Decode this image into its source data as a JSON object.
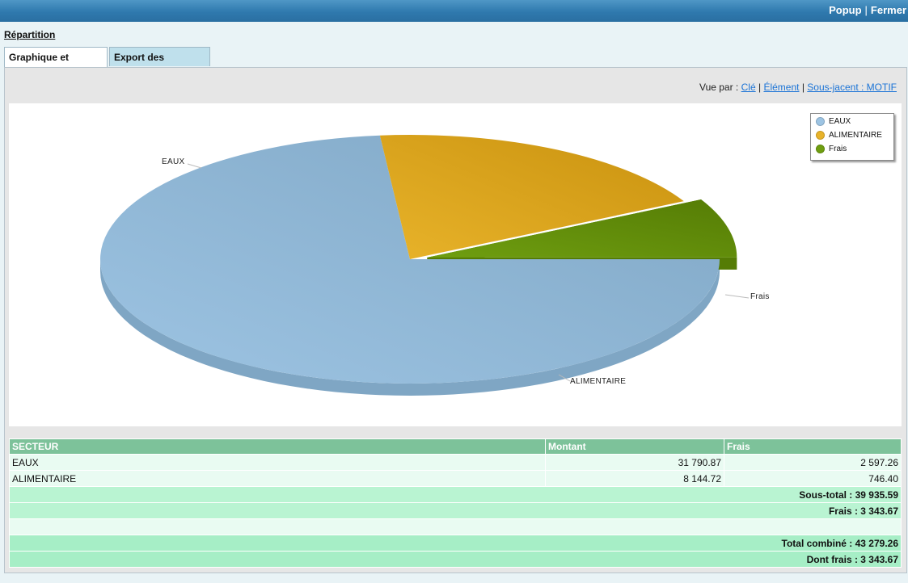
{
  "header": {
    "popup_label": "Popup",
    "separator": "|",
    "close_label": "Fermer"
  },
  "page": {
    "title": "Répartition"
  },
  "tabs": [
    {
      "label": "Graphique et tableau",
      "active": true
    },
    {
      "label": "Export des données",
      "active": false
    }
  ],
  "view_by": {
    "prefix": "Vue par :",
    "options": [
      "Clé",
      "Élément",
      "Sous-jacent : MOTIF"
    ],
    "separator": "|"
  },
  "colors": {
    "eaux": "#9dc4e3",
    "alimentaire": "#e8b32a",
    "frais": "#6f9e10",
    "header_bar": "#3581b8",
    "table_header": "#7dc29a"
  },
  "chart_data": {
    "type": "pie",
    "style": "3d",
    "legend_position": "top-right",
    "slices": [
      {
        "name": "EAUX",
        "value": 31790.87,
        "color": "#9dc4e3"
      },
      {
        "name": "ALIMENTAIRE",
        "value": 8144.72,
        "color": "#e8b32a"
      },
      {
        "name": "Frais",
        "value": 3343.67,
        "color": "#6f9e10"
      }
    ],
    "legend": [
      "EAUX",
      "ALIMENTAIRE",
      "Frais"
    ]
  },
  "table": {
    "columns": [
      "SECTEUR",
      "Montant",
      "Frais"
    ],
    "rows": [
      {
        "secteur": "EAUX",
        "montant": "31 790.87",
        "frais": "2 597.26"
      },
      {
        "secteur": "ALIMENTAIRE",
        "montant": "8 144.72",
        "frais": "746.40"
      }
    ],
    "subtotal": "Sous-total : 39 935.59",
    "fees": "Frais : 3 343.67",
    "total": "Total combiné : 43 279.26",
    "fees_included": "Dont frais : 3 343.67"
  }
}
